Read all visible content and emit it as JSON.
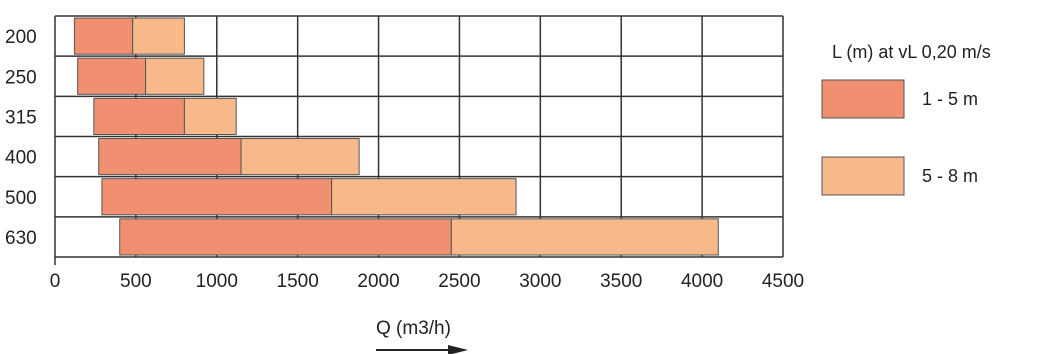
{
  "chart_data": {
    "type": "bar",
    "orientation": "horizontal",
    "stacked": true,
    "categories": [
      "200",
      "250",
      "315",
      "400",
      "500",
      "630"
    ],
    "series": [
      {
        "name": "1 - 5 m",
        "color": "#f09070",
        "start": [
          120,
          140,
          240,
          270,
          290,
          400
        ],
        "end": [
          480,
          560,
          800,
          1150,
          1710,
          2450
        ]
      },
      {
        "name": "5 - 8 m",
        "color": "#f7b98a",
        "start": [
          480,
          560,
          800,
          1150,
          1710,
          2450
        ],
        "end": [
          800,
          920,
          1120,
          1880,
          2850,
          4100
        ]
      }
    ],
    "xlim": [
      0,
      4500
    ],
    "xticks": [
      0,
      500,
      1000,
      1500,
      2000,
      2500,
      3000,
      3500,
      4000,
      4500
    ],
    "xlabel": "Q (m3/h)",
    "legend": {
      "title": "L (m) at vL 0,20 m/s",
      "position": "right"
    },
    "grid": true
  }
}
